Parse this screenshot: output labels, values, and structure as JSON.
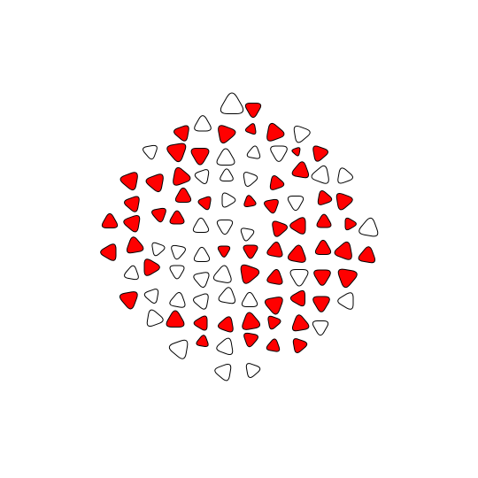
{
  "colors": {
    "background": "#ffffff",
    "filled": "#ff0000",
    "empty": "#ffffff",
    "outline": "#000000"
  },
  "pieces": [
    [
      "white",
      262,
      119,
      19,
      0
    ],
    [
      "red",
      286,
      123,
      13,
      180
    ],
    [
      "white",
      229,
      141,
      14,
      240
    ],
    [
      "red",
      255,
      151,
      15,
      80
    ],
    [
      "red",
      206,
      150,
      13,
      40
    ],
    [
      "red",
      284,
      146,
      9,
      20
    ],
    [
      "red",
      310,
      150,
      15,
      100
    ],
    [
      "white",
      340,
      151,
      14,
      200
    ],
    [
      "white",
      170,
      171,
      12,
      170
    ],
    [
      "red",
      200,
      171,
      16,
      170
    ],
    [
      "red",
      226,
      175,
      15,
      180
    ],
    [
      "white",
      255,
      179,
      15,
      240
    ],
    [
      "white",
      287,
      173,
      11,
      10
    ],
    [
      "white",
      315,
      172,
      14,
      180
    ],
    [
      "red",
      335,
      171,
      7,
      40
    ],
    [
      "red",
      361,
      173,
      13,
      200
    ],
    [
      "white",
      363,
      198,
      15,
      260
    ],
    [
      "red",
      340,
      193,
      14,
      250
    ],
    [
      "red",
      312,
      207,
      12,
      220
    ],
    [
      "white",
      282,
      202,
      12,
      200
    ],
    [
      "white",
      256,
      199,
      11,
      120
    ],
    [
      "white",
      229,
      199,
      12,
      160
    ],
    [
      "red",
      204,
      200,
      15,
      100
    ],
    [
      "red",
      176,
      206,
      15,
      280
    ],
    [
      "red",
      147,
      204,
      15,
      40
    ],
    [
      "white",
      389,
      199,
      13,
      100
    ],
    [
      "red",
      388,
      227,
      14,
      80
    ],
    [
      "red",
      366,
      224,
      12,
      100
    ],
    [
      "white",
      334,
      228,
      13,
      180
    ],
    [
      "red",
      307,
      232,
      12,
      170
    ],
    [
      "red",
      282,
      228,
      10,
      110
    ],
    [
      "white",
      257,
      226,
      12,
      90
    ],
    [
      "red",
      232,
      229,
      11,
      40
    ],
    [
      "red",
      207,
      222,
      13,
      120
    ],
    [
      "red",
      180,
      242,
      12,
      170
    ],
    [
      "red",
      150,
      230,
      13,
      40
    ],
    [
      "red",
      124,
      251,
      13,
      120
    ],
    [
      "red",
      150,
      252,
      14,
      280
    ],
    [
      "red",
      200,
      247,
      12,
      240
    ],
    [
      "white",
      227,
      256,
      13,
      0
    ],
    [
      "white",
      254,
      255,
      13,
      60
    ],
    [
      "white",
      279,
      264,
      11,
      190
    ],
    [
      "red",
      315,
      258,
      13,
      80
    ],
    [
      "red",
      338,
      255,
      14,
      270
    ],
    [
      "red",
      366,
      251,
      12,
      0
    ],
    [
      "red",
      395,
      253,
      10,
      90
    ],
    [
      "white",
      417,
      258,
      16,
      130
    ],
    [
      "red",
      415,
      289,
      14,
      250
    ],
    [
      "red",
      389,
      284,
      15,
      20
    ],
    [
      "red",
      365,
      281,
      13,
      0
    ],
    [
      "red",
      336,
      288,
      15,
      130
    ],
    [
      "red",
      311,
      283,
      13,
      10
    ],
    [
      "red",
      283,
      283,
      12,
      300
    ],
    [
      "red",
      253,
      283,
      10,
      60
    ],
    [
      "white",
      228,
      289,
      13,
      0
    ],
    [
      "white",
      201,
      284,
      12,
      70
    ],
    [
      "white",
      178,
      281,
      11,
      200
    ],
    [
      "red",
      152,
      278,
      14,
      230
    ],
    [
      "red",
      124,
      285,
      14,
      270
    ],
    [
      "white",
      149,
      309,
      12,
      10
    ],
    [
      "red",
      170,
      302,
      14,
      90
    ],
    [
      "white",
      200,
      306,
      12,
      60
    ],
    [
      "white",
      228,
      315,
      13,
      170
    ],
    [
      "white",
      252,
      311,
      15,
      10
    ],
    [
      "red",
      281,
      309,
      16,
      200
    ],
    [
      "red",
      311,
      314,
      13,
      10
    ],
    [
      "white",
      338,
      312,
      15,
      60
    ],
    [
      "red",
      364,
      312,
      14,
      300
    ],
    [
      "red",
      392,
      313,
      16,
      70
    ],
    [
      "white",
      392,
      340,
      14,
      30
    ],
    [
      "red",
      363,
      342,
      14,
      180
    ],
    [
      "red",
      338,
      337,
      13,
      30
    ],
    [
      "red",
      310,
      344,
      15,
      170
    ],
    [
      "white",
      282,
      340,
      13,
      240
    ],
    [
      "white",
      257,
      335,
      14,
      130
    ],
    [
      "white",
      228,
      340,
      13,
      160
    ],
    [
      "white",
      201,
      340,
      13,
      10
    ],
    [
      "white",
      172,
      334,
      12,
      280
    ],
    [
      "red",
      146,
      338,
      15,
      170
    ],
    [
      "white",
      174,
      360,
      14,
      220
    ],
    [
      "red",
      198,
      362,
      15,
      240
    ],
    [
      "red",
      228,
      365,
      12,
      30
    ],
    [
      "red",
      256,
      367,
      13,
      260
    ],
    [
      "red",
      283,
      364,
      15,
      110
    ],
    [
      "red",
      309,
      364,
      11,
      320
    ],
    [
      "red",
      339,
      366,
      14,
      110
    ],
    [
      "white",
      362,
      369,
      13,
      180
    ],
    [
      "white",
      203,
      394,
      16,
      160
    ],
    [
      "red",
      229,
      386,
      10,
      10
    ],
    [
      "white",
      255,
      392,
      14,
      20
    ],
    [
      "red",
      283,
      383,
      12,
      190
    ],
    [
      "red",
      309,
      391,
      11,
      250
    ],
    [
      "red",
      338,
      390,
      12,
      80
    ],
    [
      "white",
      253,
      420,
      14,
      40
    ],
    [
      "white",
      285,
      418,
      12,
      320
    ]
  ]
}
